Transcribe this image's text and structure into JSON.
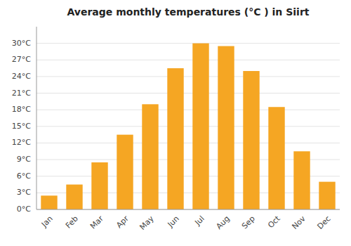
{
  "chart_data": {
    "type": "bar",
    "title": "Average monthly temperatures (°C ) in Siirt",
    "categories": [
      "Jan",
      "Feb",
      "Mar",
      "Apr",
      "May",
      "Jun",
      "Jul",
      "Aug",
      "Sep",
      "Oct",
      "Nov",
      "Dec"
    ],
    "values": [
      2.5,
      4.5,
      8.5,
      13.5,
      19.0,
      25.5,
      30.0,
      29.5,
      25.0,
      18.5,
      10.5,
      5.0
    ],
    "color": "#F5A623",
    "ylim": [
      0,
      33
    ],
    "yticks": [
      {
        "value": 0,
        "label": "0°C"
      },
      {
        "value": 3,
        "label": "3°C"
      },
      {
        "value": 6,
        "label": "6°C"
      },
      {
        "value": 9,
        "label": "9°C"
      },
      {
        "value": 12,
        "label": "12°C"
      },
      {
        "value": 15,
        "label": "15°C"
      },
      {
        "value": 18,
        "label": "18°C"
      },
      {
        "value": 21,
        "label": "21°C"
      },
      {
        "value": 24,
        "label": "24°C"
      },
      {
        "value": 27,
        "label": "27°C"
      },
      {
        "value": 30,
        "label": "30°C"
      }
    ],
    "grid": true
  }
}
